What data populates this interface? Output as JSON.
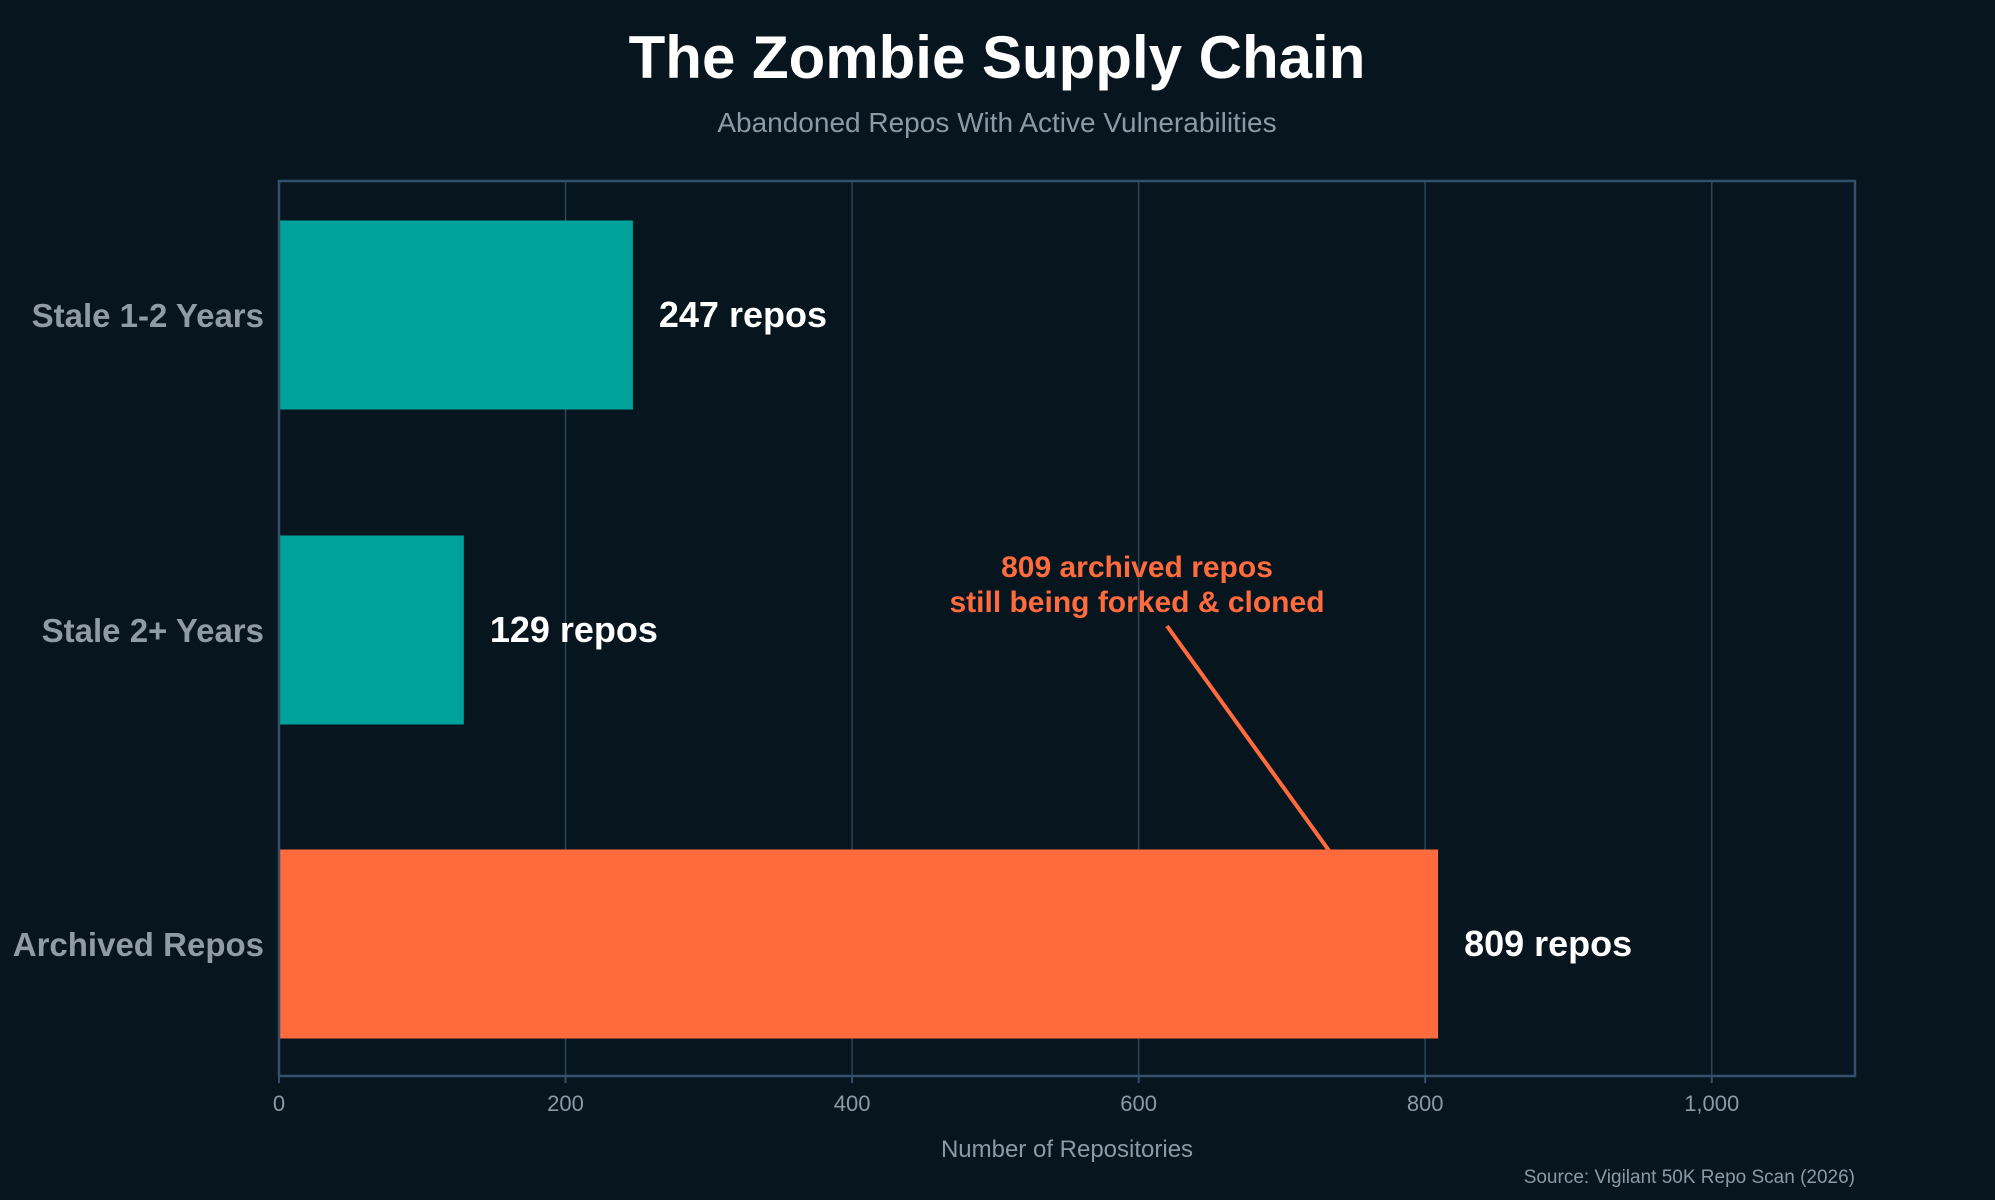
{
  "chart_data": {
    "type": "bar",
    "orientation": "horizontal",
    "title": "The Zombie Supply Chain",
    "subtitle": "Abandoned Repos With Active Vulnerabilities",
    "categories": [
      "Stale 1-2 Years",
      "Stale 2+ Years",
      "Archived Repos"
    ],
    "values": [
      247,
      129,
      809
    ],
    "data_labels": [
      "247 repos",
      "129 repos",
      "809 repos"
    ],
    "bar_colors": [
      "#00a39b",
      "#00a39b",
      "#ff6b3d"
    ],
    "xlabel": "Number of Repositories",
    "ylabel": "",
    "xlim": [
      0,
      1100
    ],
    "xticks": [
      0,
      200,
      400,
      600,
      800,
      1000
    ],
    "xtick_labels": [
      "0",
      "200",
      "400",
      "600",
      "800",
      "1,000"
    ],
    "grid": "vertical",
    "annotation": {
      "lines": [
        "809 archived repos",
        "still being forked & cloned"
      ],
      "target_category": "Archived Repos",
      "color": "#ff6b3d"
    },
    "source": "Source: Vigilant 50K Repo Scan (2026)",
    "background": "#07151e"
  }
}
